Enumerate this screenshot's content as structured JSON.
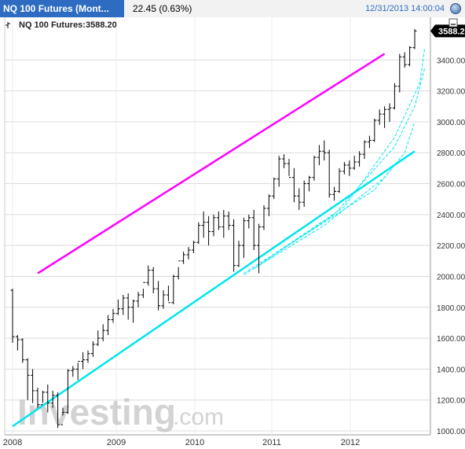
{
  "header": {
    "title": "NQ 100 Futures (Mont...",
    "change": "22.45 (0.63%)",
    "timestamp": "12/31/2013 14:00:04"
  },
  "legend_label": "NQ 100 Futures:3588.20",
  "watermark": {
    "text": "Investing",
    "suffix": ".com"
  },
  "colors": {
    "header": "#2d6cc0",
    "upper_trendline": "#ff00ff",
    "lower_trendline": "#00e5ee",
    "bars": "#000000",
    "grid": "#dcdcdc"
  },
  "chart_data": {
    "type": "ohlc",
    "title": "NQ 100 Futures",
    "ylim": [
      1000,
      3600
    ],
    "y_ticks": [
      1000,
      1200,
      1400,
      1600,
      1800,
      2000,
      2200,
      2400,
      2600,
      2800,
      3000,
      3200,
      3400
    ],
    "y_tick_labels": [
      "1000.00",
      "1200.00",
      "1400.00",
      "1600.00",
      "1800.00",
      "2000.00",
      "2200.00",
      "2400.00",
      "2600.00",
      "2800.00",
      "3000.00",
      "3200.00",
      "3400.00"
    ],
    "x_labels": [
      "2008",
      "2009",
      "2010",
      "2011",
      "2012"
    ],
    "last_value": 3588.2,
    "last_value_label": "3588.2",
    "grid": true,
    "bars": [
      [
        1910,
        1920,
        1570,
        1610
      ],
      [
        1610,
        1620,
        1520,
        1590
      ],
      [
        1590,
        1600,
        1440,
        1460
      ],
      [
        1460,
        1470,
        1200,
        1360
      ],
      [
        1360,
        1400,
        1180,
        1260
      ],
      [
        1260,
        1280,
        1150,
        1170
      ],
      [
        1170,
        1260,
        1180,
        1250
      ],
      [
        1250,
        1300,
        1120,
        1180
      ],
      [
        1180,
        1260,
        1150,
        1230
      ],
      [
        1230,
        1250,
        1020,
        1040
      ],
      [
        1040,
        1150,
        1100,
        1120
      ],
      [
        1120,
        1400,
        1110,
        1390
      ],
      [
        1390,
        1420,
        1350,
        1400
      ],
      [
        1400,
        1440,
        1330,
        1450
      ],
      [
        1450,
        1510,
        1400,
        1460
      ],
      [
        1460,
        1520,
        1440,
        1500
      ],
      [
        1500,
        1580,
        1480,
        1560
      ],
      [
        1560,
        1650,
        1550,
        1600
      ],
      [
        1600,
        1690,
        1580,
        1650
      ],
      [
        1650,
        1750,
        1620,
        1720
      ],
      [
        1720,
        1790,
        1700,
        1760
      ],
      [
        1760,
        1850,
        1750,
        1790
      ],
      [
        1790,
        1880,
        1750,
        1860
      ],
      [
        1860,
        1890,
        1720,
        1800
      ],
      [
        1800,
        1850,
        1700,
        1840
      ],
      [
        1840,
        1900,
        1800,
        1880
      ],
      [
        1880,
        1920,
        1860,
        1960
      ],
      [
        1960,
        2070,
        1940,
        2040
      ],
      [
        2040,
        2060,
        1890,
        1920
      ],
      [
        1920,
        1970,
        1780,
        1810
      ],
      [
        1810,
        1910,
        1790,
        1880
      ],
      [
        1880,
        1940,
        1840,
        1830
      ],
      [
        1830,
        2010,
        1820,
        2000
      ],
      [
        2000,
        2060,
        1980,
        2100
      ],
      [
        2100,
        2160,
        2080,
        2140
      ],
      [
        2140,
        2190,
        2110,
        2170
      ],
      [
        2170,
        2230,
        2150,
        2220
      ],
      [
        2220,
        2350,
        2210,
        2330
      ],
      [
        2330,
        2420,
        2250,
        2350
      ],
      [
        2350,
        2390,
        2200,
        2290
      ],
      [
        2290,
        2400,
        2260,
        2380
      ],
      [
        2380,
        2420,
        2300,
        2320
      ],
      [
        2320,
        2430,
        2250,
        2390
      ],
      [
        2390,
        2420,
        2300,
        2330
      ],
      [
        2330,
        2370,
        2030,
        2070
      ],
      [
        2070,
        2230,
        2060,
        2200
      ],
      [
        2200,
        2380,
        2120,
        2360
      ],
      [
        2360,
        2400,
        2310,
        2380
      ],
      [
        2380,
        2430,
        2170,
        2200
      ],
      [
        2200,
        2340,
        2020,
        2320
      ],
      [
        2320,
        2460,
        2300,
        2440
      ],
      [
        2440,
        2530,
        2390,
        2520
      ],
      [
        2520,
        2640,
        2500,
        2630
      ],
      [
        2630,
        2780,
        2580,
        2760
      ],
      [
        2760,
        2790,
        2700,
        2730
      ],
      [
        2730,
        2760,
        2650,
        2640
      ],
      [
        2640,
        2700,
        2480,
        2520
      ],
      [
        2520,
        2570,
        2430,
        2480
      ],
      [
        2480,
        2620,
        2450,
        2600
      ],
      [
        2600,
        2650,
        2550,
        2640
      ],
      [
        2640,
        2780,
        2620,
        2770
      ],
      [
        2770,
        2850,
        2720,
        2810
      ],
      [
        2810,
        2880,
        2750,
        2800
      ],
      [
        2800,
        2820,
        2510,
        2530
      ],
      [
        2530,
        2580,
        2490,
        2550
      ],
      [
        2550,
        2700,
        2540,
        2680
      ],
      [
        2680,
        2740,
        2660,
        2720
      ],
      [
        2720,
        2750,
        2650,
        2700
      ],
      [
        2700,
        2780,
        2690,
        2740
      ],
      [
        2740,
        2810,
        2710,
        2790
      ],
      [
        2790,
        2880,
        2760,
        2870
      ],
      [
        2870,
        2910,
        2830,
        2880
      ],
      [
        2880,
        3020,
        2870,
        3010
      ],
      [
        3010,
        3080,
        2980,
        3050
      ],
      [
        3050,
        3100,
        2960,
        3080
      ],
      [
        3080,
        3120,
        3000,
        3090
      ],
      [
        3090,
        3250,
        3080,
        3230
      ],
      [
        3230,
        3440,
        3190,
        3420
      ],
      [
        3420,
        3450,
        3350,
        3370
      ],
      [
        3370,
        3490,
        3360,
        3480
      ],
      [
        3480,
        3600,
        3470,
        3588
      ]
    ],
    "upper_trendline": [
      [
        5,
        2020
      ],
      [
        74,
        3440
      ]
    ],
    "lower_trendline": [
      [
        0,
        1030
      ],
      [
        80,
        2810
      ]
    ]
  }
}
